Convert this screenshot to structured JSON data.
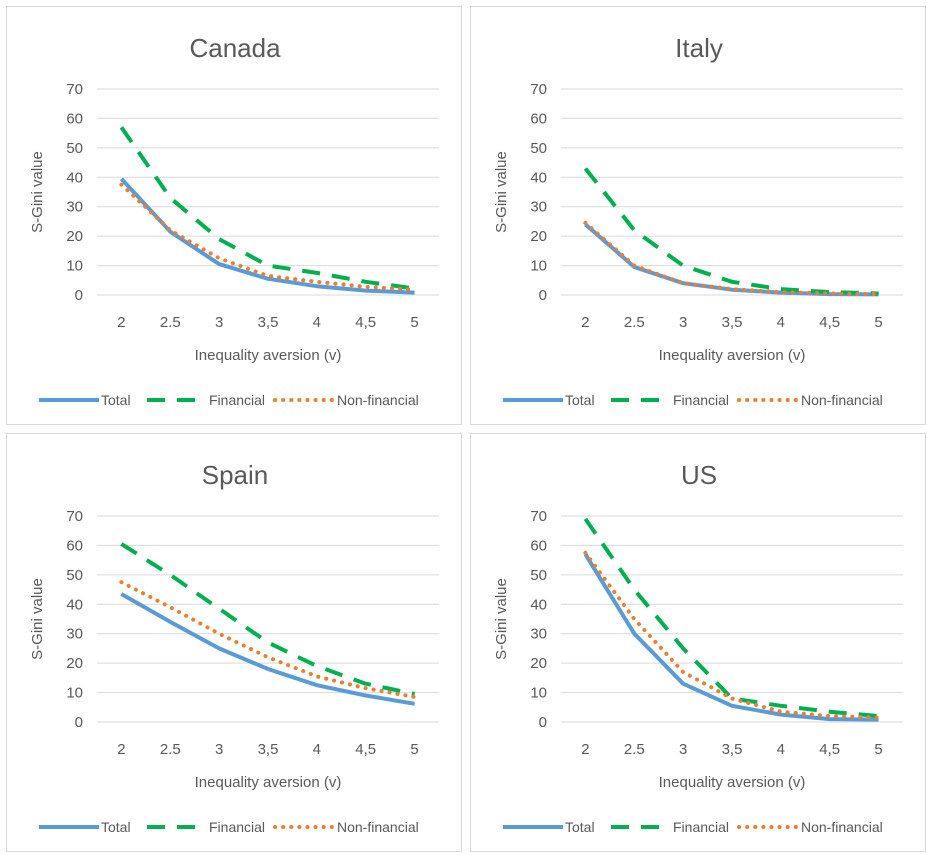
{
  "colors": {
    "total": "#5b9bd5",
    "financial": "#00b050",
    "non_financial": "#ed7d31",
    "grid": "#d9d9d9"
  },
  "chart_data": [
    {
      "type": "line",
      "title": "Canada",
      "xlabel": "Inequality aversion (v)",
      "ylabel": "S-Gini value",
      "categories": [
        "2",
        "2.5",
        "3",
        "3,5",
        "4",
        "4,5",
        "5"
      ],
      "ylim": [
        0,
        70
      ],
      "yticks": [
        "0",
        "10",
        "20",
        "30",
        "40",
        "50",
        "60",
        "70"
      ],
      "legend_position": "bottom",
      "grid": true,
      "series": [
        {
          "name": "Total",
          "values": [
            39.5,
            21.5,
            10.5,
            5.5,
            3,
            1.5,
            0.8
          ]
        },
        {
          "name": "Financial",
          "values": [
            57,
            33,
            19,
            10,
            7.5,
            4.5,
            2.2
          ]
        },
        {
          "name": "Non-financial",
          "values": [
            37.5,
            22,
            12.5,
            6.5,
            4.5,
            2.8,
            1.8
          ]
        }
      ]
    },
    {
      "type": "line",
      "title": "Italy",
      "xlabel": "Inequality aversion (v)",
      "ylabel": "S-Gini value",
      "categories": [
        "2",
        "2.5",
        "3",
        "3,5",
        "4",
        "4,5",
        "5"
      ],
      "ylim": [
        0,
        70
      ],
      "yticks": [
        "0",
        "10",
        "20",
        "30",
        "40",
        "50",
        "60",
        "70"
      ],
      "legend_position": "bottom",
      "grid": true,
      "series": [
        {
          "name": "Total",
          "values": [
            24,
            9.5,
            4,
            1.8,
            0.8,
            0.3,
            0.2
          ]
        },
        {
          "name": "Financial",
          "values": [
            43,
            22,
            10,
            4.5,
            2,
            1,
            0.5
          ]
        },
        {
          "name": "Non-financial",
          "values": [
            24.5,
            10,
            4,
            2,
            1,
            0.5,
            0.3
          ]
        }
      ]
    },
    {
      "type": "line",
      "title": "Spain",
      "xlabel": "Inequality aversion (v)",
      "ylabel": "S-Gini value",
      "categories": [
        "2",
        "2.5",
        "3",
        "3,5",
        "4",
        "4,5",
        "5"
      ],
      "ylim": [
        0,
        70
      ],
      "yticks": [
        "0",
        "10",
        "20",
        "30",
        "40",
        "50",
        "60",
        "70"
      ],
      "legend_position": "bottom",
      "grid": true,
      "series": [
        {
          "name": "Total",
          "values": [
            43.5,
            34,
            25,
            18,
            12.5,
            9,
            6.2
          ]
        },
        {
          "name": "Financial",
          "values": [
            60.5,
            50,
            38.5,
            27,
            19,
            13,
            9.5
          ]
        },
        {
          "name": "Non-financial",
          "values": [
            47.5,
            39,
            30,
            22,
            15.5,
            11.5,
            8.5
          ]
        }
      ]
    },
    {
      "type": "line",
      "title": "US",
      "xlabel": "Inequality aversion (v)",
      "ylabel": "S-Gini value",
      "categories": [
        "2",
        "2.5",
        "3",
        "3,5",
        "4",
        "4,5",
        "5"
      ],
      "ylim": [
        0,
        70
      ],
      "yticks": [
        "0",
        "10",
        "20",
        "30",
        "40",
        "50",
        "60",
        "70"
      ],
      "legend_position": "bottom",
      "grid": true,
      "series": [
        {
          "name": "Total",
          "values": [
            57,
            30,
            13,
            5.5,
            2.5,
            1,
            0.8
          ]
        },
        {
          "name": "Financial",
          "values": [
            69,
            45,
            25,
            8,
            5.5,
            3.5,
            2
          ]
        },
        {
          "name": "Non-financial",
          "values": [
            57.5,
            35,
            17,
            8,
            3.5,
            2,
            1.5
          ]
        }
      ]
    }
  ]
}
